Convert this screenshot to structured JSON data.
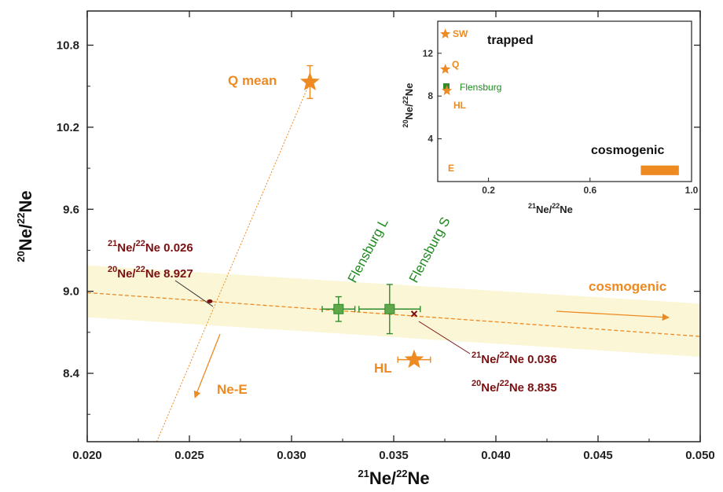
{
  "colors": {
    "orange": "#ee8a22",
    "green": "#2e8b2e",
    "darkred": "#7a1012",
    "band": "#fbf6d6",
    "axis": "#222222"
  },
  "chart_data": [
    {
      "type": "scatter",
      "xlabel": {
        "sup": "21",
        "main": "Ne/",
        "sup2": "22",
        "tail": "Ne"
      },
      "ylabel": {
        "sup": "20",
        "main": "Ne/",
        "sup2": "22",
        "tail": "Ne"
      },
      "xlim": [
        0.02,
        0.05
      ],
      "ylim": [
        7.9,
        11.05
      ],
      "x_ticks": [
        "0.020",
        "0.025",
        "0.030",
        "0.035",
        "0.040",
        "0.045",
        "0.050"
      ],
      "y_ticks": [
        "8.4",
        "9.0",
        "9.6",
        "10.2",
        "10.8"
      ],
      "points": [
        {
          "label": "Q mean",
          "x": 0.0309,
          "y": 10.53,
          "yerr": 0.12,
          "marker": "star",
          "color": "orange"
        },
        {
          "label": "HL",
          "x": 0.036,
          "y": 8.5,
          "xerr": 0.0008,
          "marker": "star",
          "color": "orange"
        },
        {
          "label": "Flensburg L",
          "x": 0.0323,
          "y": 8.87,
          "xerr": 0.0008,
          "yerr": 0.09,
          "marker": "square",
          "color": "green"
        },
        {
          "label": "Flensburg S",
          "x": 0.0348,
          "y": 8.87,
          "xerr": 0.0015,
          "yerr": 0.18,
          "marker": "square",
          "color": "green"
        }
      ],
      "lines": [
        {
          "name": "cosmogenic",
          "from": [
            0.02,
            8.99
          ],
          "to": [
            0.05,
            8.67
          ]
        },
        {
          "name": "Ne-E",
          "from": [
            0.0234,
            7.9
          ],
          "to": [
            0.0309,
            10.53
          ]
        }
      ],
      "band": {
        "upper": [
          [
            0.02,
            9.19
          ],
          [
            0.05,
            8.91
          ]
        ],
        "lower": [
          [
            0.02,
            8.81
          ],
          [
            0.05,
            8.52
          ]
        ]
      },
      "intersections": [
        {
          "x": 0.026,
          "y": 8.927,
          "l1": {
            "sup1": "21",
            "a": "Ne/",
            "sup2": "22",
            "b": "Ne 0.026"
          },
          "l2": {
            "sup1": "20",
            "a": "Ne/",
            "sup2": "22",
            "b": "Ne 8.927"
          }
        },
        {
          "x": 0.036,
          "y": 8.835,
          "l1": {
            "sup1": "21",
            "a": "Ne/",
            "sup2": "22",
            "b": "Ne 0.036"
          },
          "l2": {
            "sup1": "20",
            "a": "Ne/",
            "sup2": "22",
            "b": "Ne 8.835"
          }
        }
      ],
      "labels": {
        "q_mean": "Q mean",
        "hl": "HL",
        "ne_e": "Ne-E",
        "cosmogenic": "cosmogenic",
        "flensburg_l": "Flensburg L",
        "flensburg_s": "Flensburg S"
      }
    },
    {
      "type": "scatter",
      "inset": true,
      "xlabel": {
        "sup": "21",
        "main": "Ne/",
        "sup2": "22",
        "tail": "Ne"
      },
      "ylabel": {
        "sup": "20",
        "main": "Ne/",
        "sup2": "22",
        "tail": "Ne"
      },
      "xlim": [
        0,
        1.0
      ],
      "ylim": [
        0,
        15
      ],
      "x_ticks": [
        "0.2",
        "0.6",
        "1.0"
      ],
      "y_ticks": [
        "4",
        "8",
        "12"
      ],
      "points": [
        {
          "label": "SW",
          "x": 0.03,
          "y": 13.8,
          "marker": "star",
          "color": "orange"
        },
        {
          "label": "Q",
          "x": 0.03,
          "y": 10.5,
          "marker": "star",
          "color": "orange"
        },
        {
          "label": "Flensburg",
          "x": 0.034,
          "y": 8.9,
          "marker": "square",
          "color": "green"
        },
        {
          "label": "HL",
          "x": 0.036,
          "y": 8.5,
          "marker": "star",
          "color": "orange"
        },
        {
          "label": "E",
          "x": 0.04,
          "y": 0.6,
          "marker": "text",
          "color": "orange"
        }
      ],
      "cosmogenic_range": {
        "x": [
          0.8,
          0.95
        ],
        "y": [
          0.6,
          1.5
        ]
      },
      "labels": {
        "trapped": "trapped",
        "cosmogenic": "cosmogenic"
      }
    }
  ]
}
